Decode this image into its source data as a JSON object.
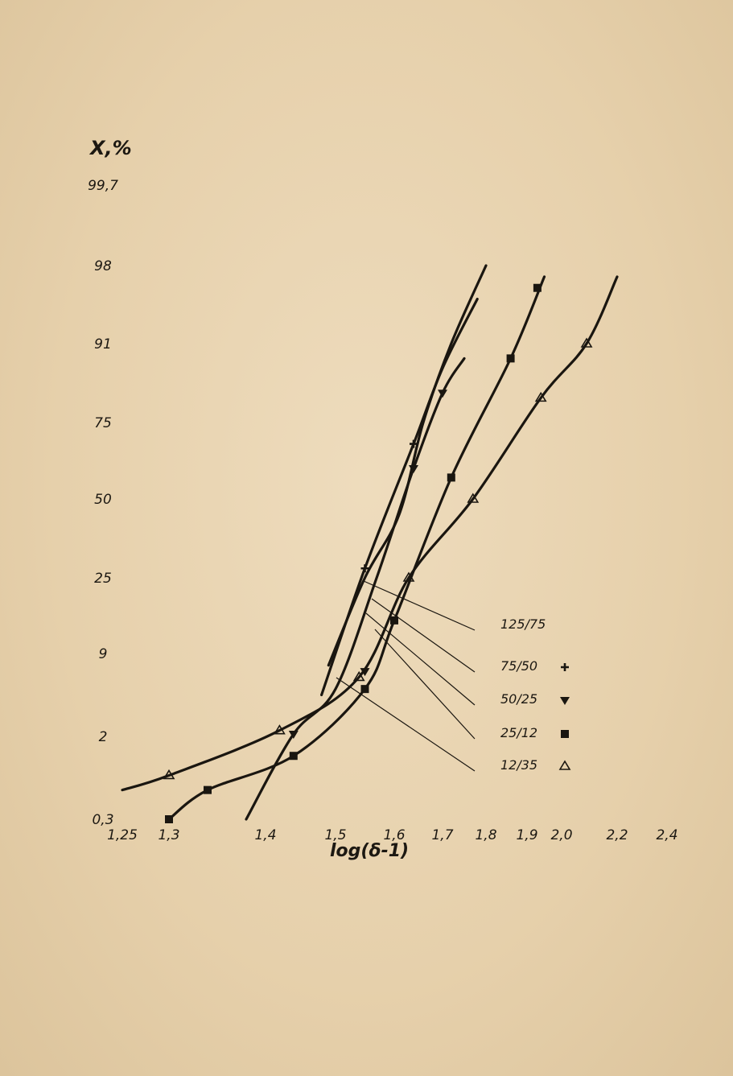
{
  "chart_data": {
    "type": "scatter",
    "title": "",
    "xlabel": "log(δ-1)",
    "ylabel": "X,%",
    "x_ticks": [
      "1,25",
      "1,3",
      "1,4",
      "1,5",
      "1,6",
      "1,7",
      "1,8",
      "1,9",
      "2,0",
      "2,2",
      "2,4"
    ],
    "y_ticks": [
      "99,7",
      "98",
      "91",
      "75",
      "50",
      "25",
      "9",
      "2",
      "0,3"
    ],
    "y_scale": "probability",
    "grid": false,
    "legend_position": "right",
    "series": [
      {
        "name": "125/75",
        "marker": "none",
        "points": [
          [
            1.5,
            9.5
          ],
          [
            1.55,
            25
          ],
          [
            1.61,
            45
          ],
          [
            1.66,
            75
          ],
          [
            1.72,
            91
          ],
          [
            1.79,
            97
          ]
        ]
      },
      {
        "name": "75/50",
        "marker": "plus",
        "points": [
          [
            1.55,
            28
          ],
          [
            1.64,
            68
          ]
        ]
      },
      {
        "name": "50/25",
        "marker": "triangle-down",
        "points": [
          [
            1.44,
            2.2
          ],
          [
            1.55,
            7.5
          ],
          [
            1.64,
            60
          ],
          [
            1.7,
            81
          ]
        ]
      },
      {
        "name": "25/12",
        "marker": "square",
        "points": [
          [
            1.3,
            0.3
          ],
          [
            1.34,
            0.9
          ],
          [
            1.44,
            1.6
          ],
          [
            1.55,
            6
          ],
          [
            1.6,
            16
          ],
          [
            1.72,
            57
          ],
          [
            1.86,
            88
          ],
          [
            1.93,
            96
          ]
        ]
      },
      {
        "name": "12/35",
        "marker": "triangle-up",
        "points": [
          [
            1.3,
            1.2
          ],
          [
            1.42,
            2.5
          ],
          [
            1.54,
            7
          ],
          [
            1.63,
            25
          ],
          [
            1.77,
            50
          ],
          [
            1.94,
            80
          ],
          [
            2.09,
            91
          ]
        ]
      }
    ]
  }
}
